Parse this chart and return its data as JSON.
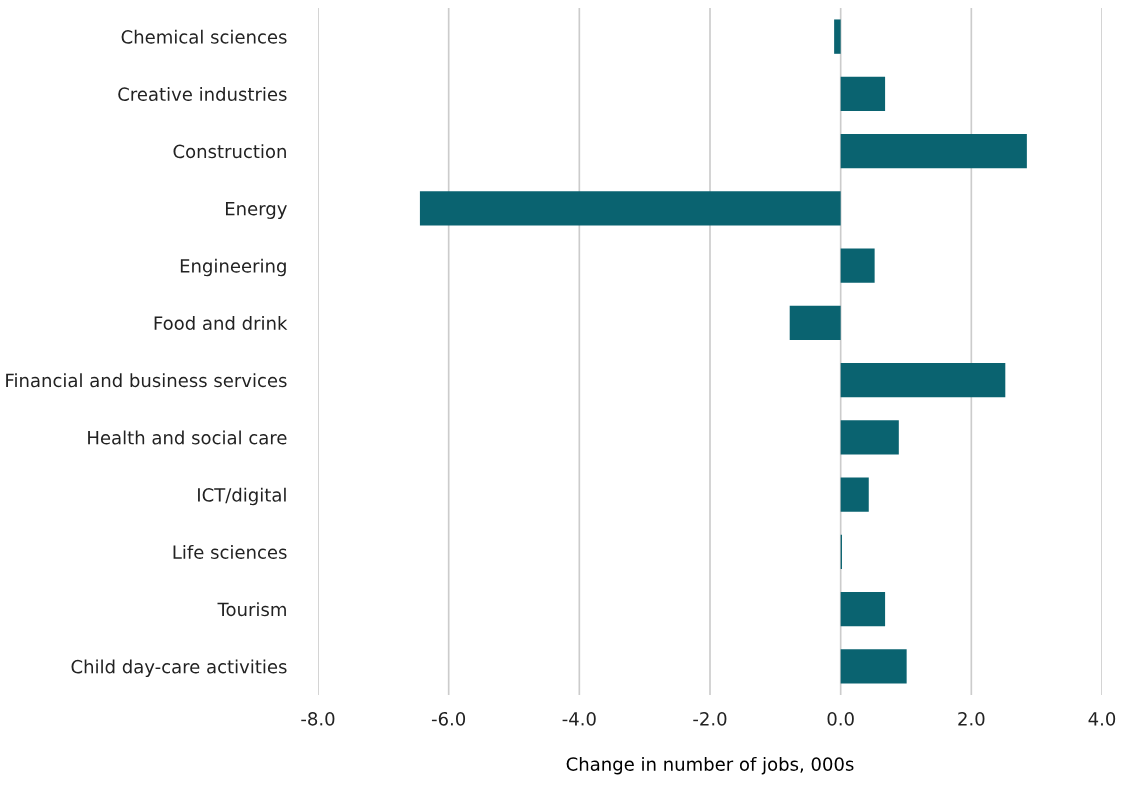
{
  "chart_data": {
    "type": "bar",
    "orientation": "horizontal",
    "xlabel": "Change in number of jobs, 000s",
    "categories": [
      "Chemical sciences",
      "Creative industries",
      "Construction",
      "Energy",
      "Engineering",
      "Food and drink",
      "Financial and business services",
      "Health and social care",
      "ICT/digital",
      "Life sciences",
      "Tourism",
      "Child day-care activities"
    ],
    "values": [
      -0.1,
      0.68,
      2.85,
      -6.44,
      0.52,
      -0.78,
      2.52,
      0.89,
      0.43,
      0.02,
      0.68,
      1.01
    ],
    "color": "#0a6370",
    "xlim": [
      -8,
      4
    ],
    "xticks": [
      {
        "value": -8,
        "label": "-8.0"
      },
      {
        "value": -6,
        "label": "-6.0"
      },
      {
        "value": -4,
        "label": "-4.0"
      },
      {
        "value": -2,
        "label": "-2.0"
      },
      {
        "value": 0,
        "label": "0.0"
      },
      {
        "value": 2,
        "label": "2.0"
      },
      {
        "value": 4,
        "label": "4.0"
      }
    ],
    "grid": "x"
  }
}
